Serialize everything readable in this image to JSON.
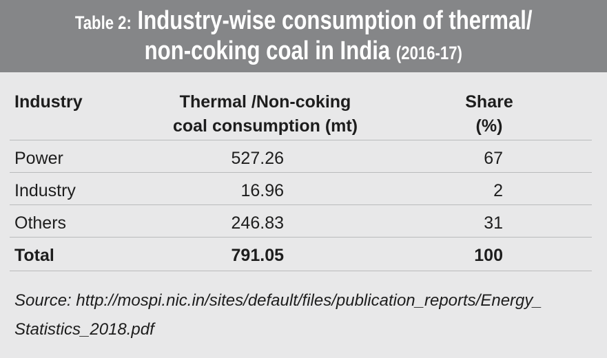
{
  "title": {
    "prefix": "Table 2:",
    "line1_main": "Industry-wise consumption of thermal/",
    "line2_main": "non-coking coal in India",
    "line2_suffix": "(2016-17)"
  },
  "colors": {
    "header_bg": "#858688",
    "body_bg": "#e8e8e9",
    "text": "#1d1d1d"
  },
  "table": {
    "headers": {
      "industry": "Industry",
      "consumption_line1": "Thermal /Non-coking",
      "consumption_line2": "coal consumption (mt)",
      "share_line1": "Share",
      "share_line2": "(%)"
    },
    "rows": [
      {
        "industry": "Power",
        "consumption": "527.26",
        "share": "67"
      },
      {
        "industry": "Industry",
        "consumption": "16.96",
        "share": "2"
      },
      {
        "industry": "Others",
        "consumption": "246.83",
        "share": "31"
      }
    ],
    "total": {
      "industry": "Total",
      "consumption": "791.05",
      "share": "100"
    }
  },
  "source": {
    "line1": "Source: http://mospi.nic.in/sites/default/files/publication_reports/Energy_",
    "line2": "Statistics_2018.pdf"
  }
}
